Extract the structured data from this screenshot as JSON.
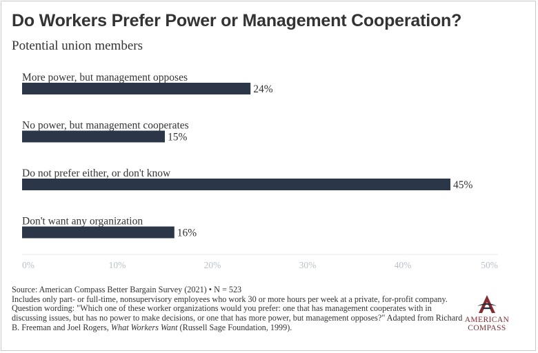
{
  "title": "Do Workers Prefer Power or Management Cooperation?",
  "subtitle": "Potential union members",
  "colors": {
    "bar": "#2b3648",
    "axis_tick_text": "#b8c2cc",
    "brand": "#8b2a2e"
  },
  "chart_data": {
    "type": "bar",
    "orientation": "horizontal",
    "title": "Do Workers Prefer Power or Management Cooperation?",
    "subtitle": "Potential union members",
    "categories": [
      "More power, but management opposes",
      "No power, but management cooperates",
      "Do not prefer either, or don't know",
      "Don't want any organization"
    ],
    "values": [
      24,
      15,
      45,
      16
    ],
    "data_labels": [
      "24%",
      "15%",
      "45%",
      "16%"
    ],
    "xlim": [
      0,
      50
    ],
    "xticks": [
      0,
      10,
      20,
      30,
      40,
      50
    ],
    "xtick_labels": [
      "0%",
      "10%",
      "20%",
      "30%",
      "40%",
      "50%"
    ],
    "grid": false,
    "legend": "none"
  },
  "footnote": {
    "source": "Source: American Compass Better Bargain Survey (2021) • N = 523",
    "note_before_title": "Includes only part- or full-time, nonsupervisory employees who work 30 or more hours per week at a private, for-profit company. Question wording: \"Which one of these worker organizations would you prefer: one that has management cooperates with in discussing issues, but has no power to make decisions, or one that has more power, but management opposes?\" Adapted from Richard B. Freeman and Joel Rogers,",
    "book_title": "What Workers Want",
    "note_after_title": "(Russell Sage Foundation, 1999)."
  },
  "logo": {
    "line1": "AMERICAN",
    "line2": "COMPASS",
    "icon": "compass-a-icon"
  }
}
